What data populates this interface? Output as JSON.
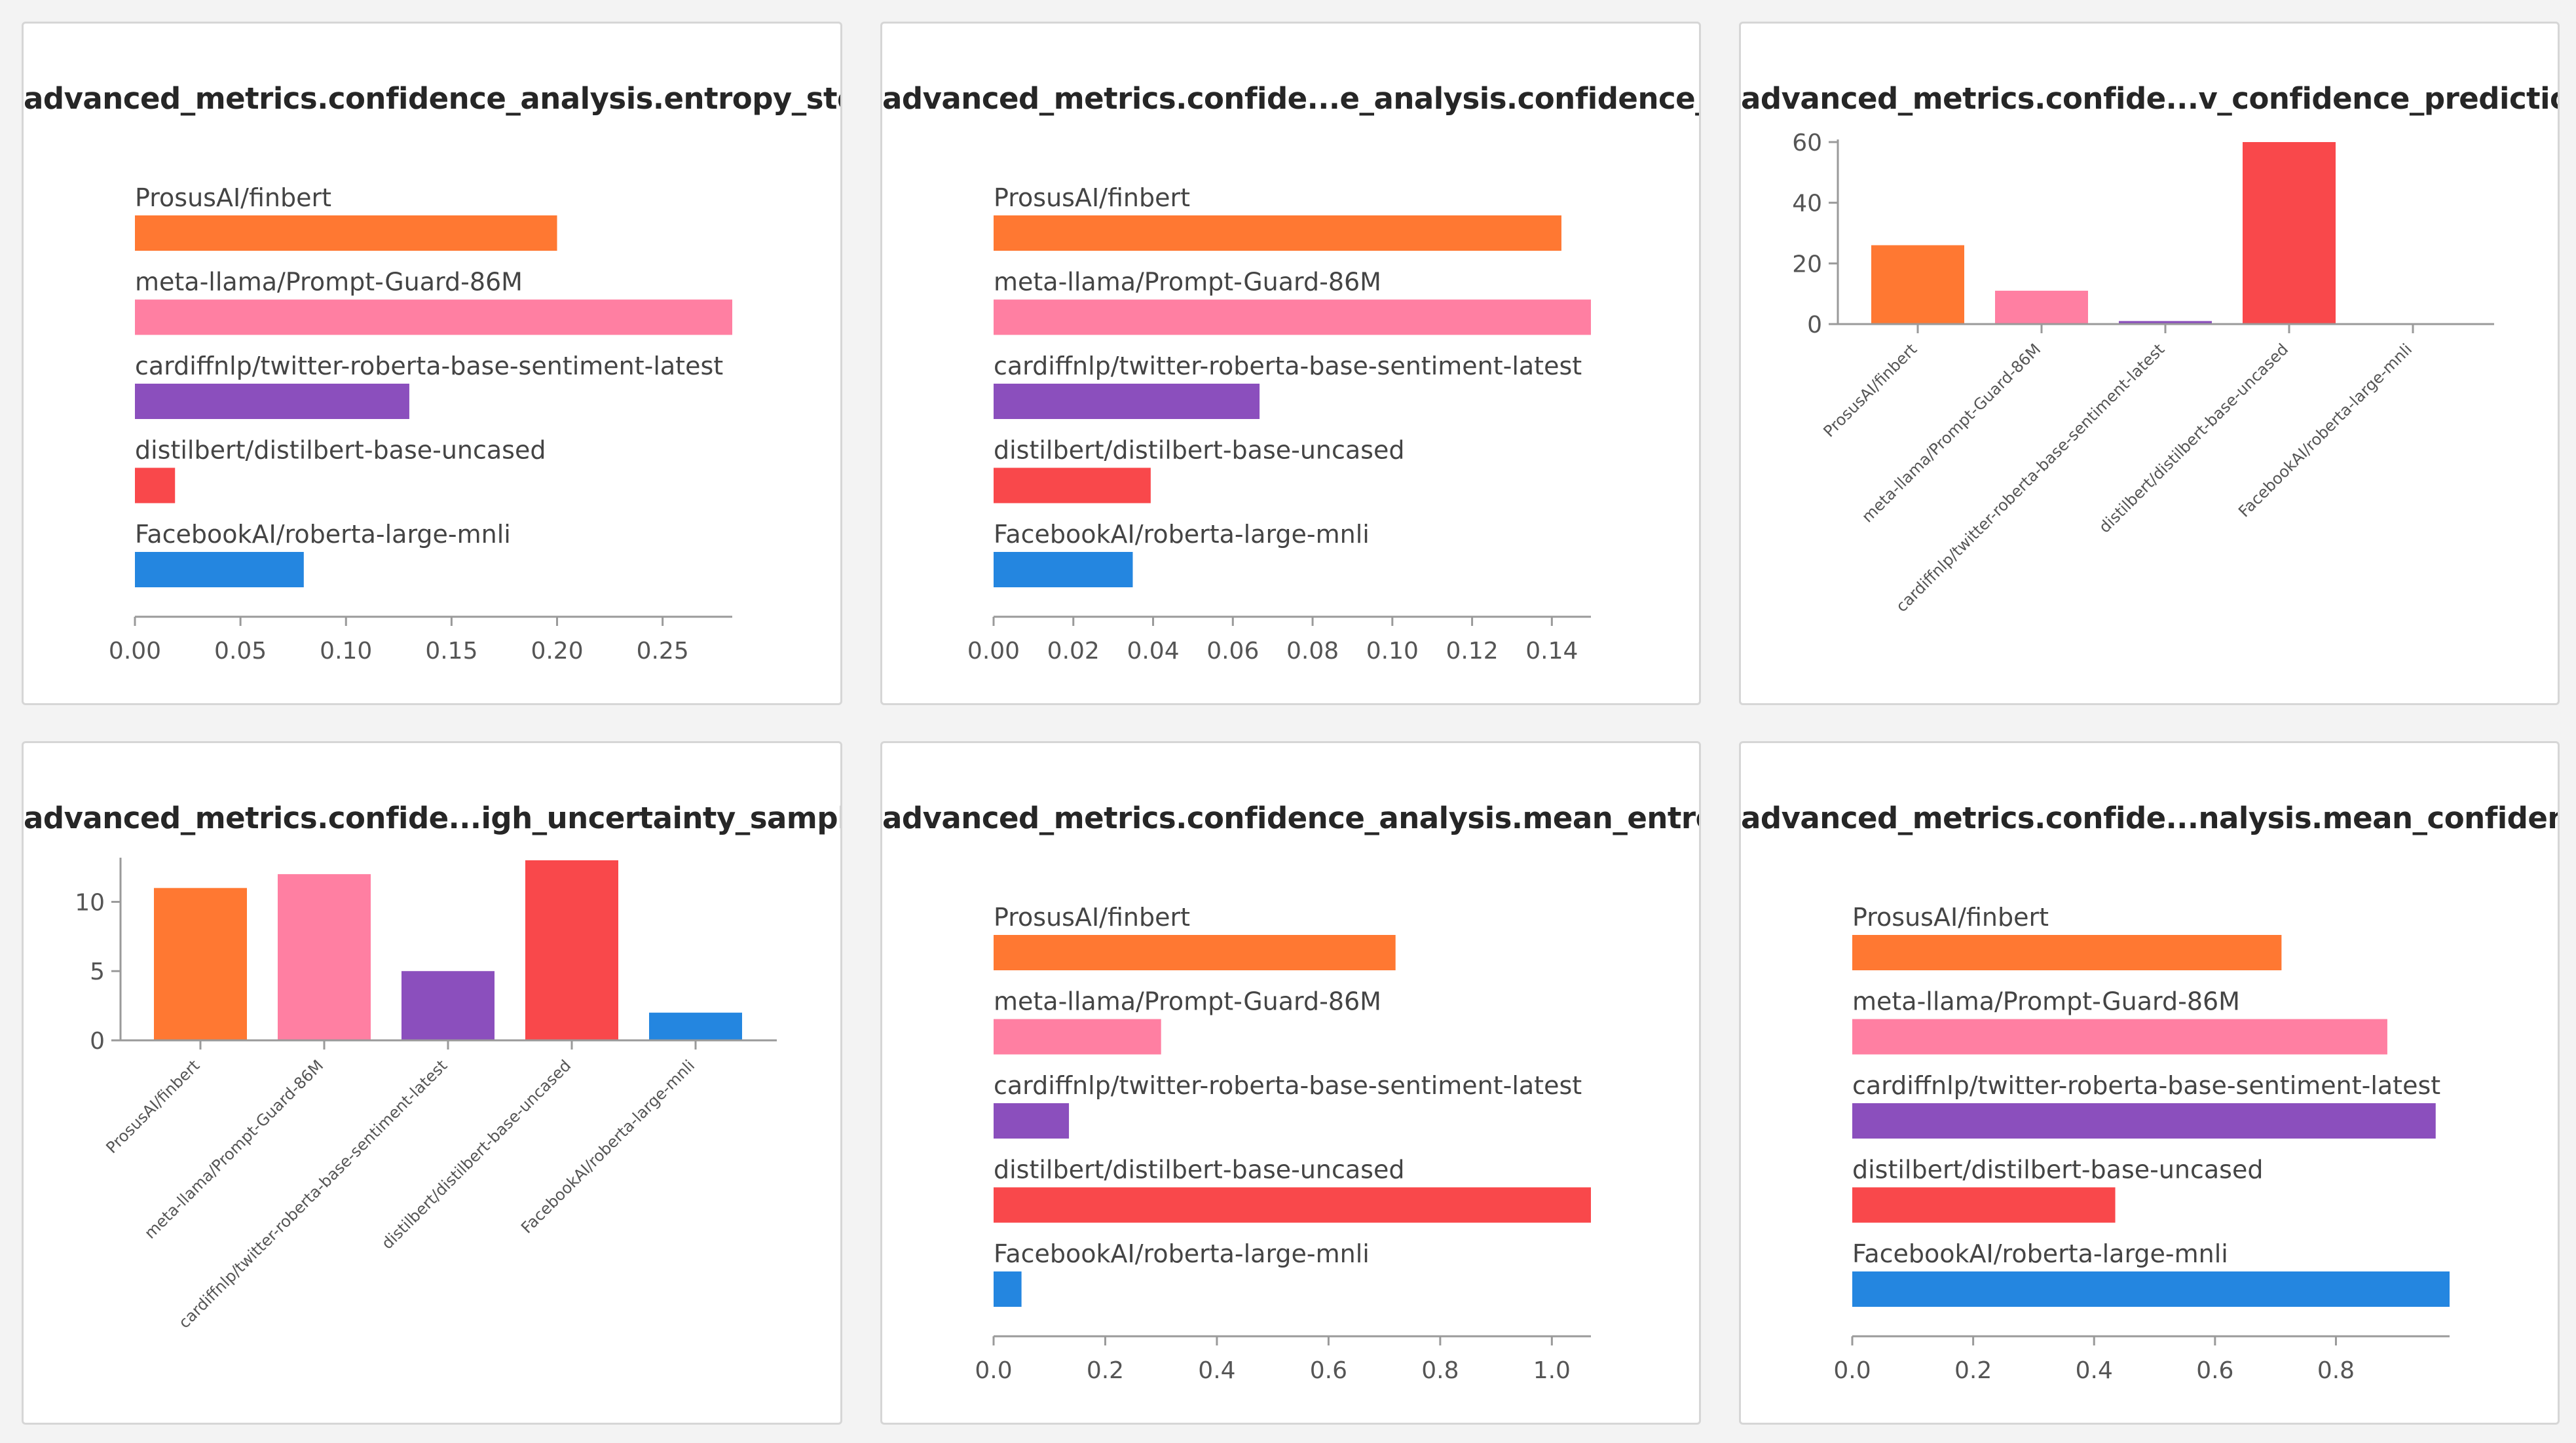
{
  "panels": [
    {
      "title": "advanced_metrics.confidence_analysis.entropy_std"
    },
    {
      "title": "advanced_metrics.confide...e_analysis.confidence_std"
    },
    {
      "title": "advanced_metrics.confide...v_confidence_predictions"
    },
    {
      "title": "advanced_metrics.confide...igh_uncertainty_samples"
    },
    {
      "title": "advanced_metrics.confidence_analysis.mean_entropy"
    },
    {
      "title": "advanced_metrics.confide...nalysis.mean_confidence"
    }
  ],
  "colors": {
    "ProsusAI/finbert": "#ff7832",
    "meta-llama/Prompt-Guard-86M": "#ff7fa2",
    "cardiffnlp/twitter-roberta-base-sentiment-latest": "#8b4fbd",
    "distilbert/distilbert-base-uncased": "#f9484b",
    "FacebookAI/roberta-large-mnli": "#2486e0"
  },
  "chart_data": [
    {
      "type": "bar",
      "orientation": "horizontal",
      "title": "advanced_metrics.confidence_analysis.entropy_std",
      "categories": [
        "ProsusAI/finbert",
        "meta-llama/Prompt-Guard-86M",
        "cardiffnlp/twitter-roberta-base-sentiment-latest",
        "distilbert/distilbert-base-uncased",
        "FacebookAI/roberta-large-mnli"
      ],
      "values": [
        0.2,
        0.283,
        0.13,
        0.019,
        0.08
      ],
      "xlim": [
        0,
        0.283
      ],
      "ticks": [
        0,
        0.05,
        0.1,
        0.15,
        0.2,
        0.25
      ],
      "tick_labels": [
        "0.00",
        "0.05",
        "0.10",
        "0.15",
        "0.20",
        "0.25"
      ]
    },
    {
      "type": "bar",
      "orientation": "horizontal",
      "title": "advanced_metrics.confide...e_analysis.confidence_std",
      "categories": [
        "ProsusAI/finbert",
        "meta-llama/Prompt-Guard-86M",
        "cardiffnlp/twitter-roberta-base-sentiment-latest",
        "distilbert/distilbert-base-uncased",
        "FacebookAI/roberta-large-mnli"
      ],
      "values": [
        0.1424,
        0.1498,
        0.0667,
        0.0394,
        0.0349
      ],
      "xlim": [
        0,
        0.1498
      ],
      "ticks": [
        0,
        0.02,
        0.04,
        0.06,
        0.08,
        0.1,
        0.12,
        0.14
      ],
      "tick_labels": [
        "0.00",
        "0.02",
        "0.04",
        "0.06",
        "0.08",
        "0.10",
        "0.12",
        "0.14"
      ]
    },
    {
      "type": "bar",
      "orientation": "vertical",
      "title": "advanced_metrics.confide...v_confidence_predictions",
      "categories": [
        "ProsusAI/finbert",
        "meta-llama/Prompt-Guard-86M",
        "cardiffnlp/twitter-roberta-base-sentiment-latest",
        "distilbert/distilbert-base-uncased",
        "FacebookAI/roberta-large-mnli"
      ],
      "values": [
        26,
        11,
        1,
        60,
        0
      ],
      "ylim": [
        0,
        60
      ],
      "ticks": [
        0,
        20,
        40,
        60
      ],
      "tick_labels": [
        "0",
        "20",
        "40",
        "60"
      ]
    },
    {
      "type": "bar",
      "orientation": "vertical",
      "title": "advanced_metrics.confide...igh_uncertainty_samples",
      "categories": [
        "ProsusAI/finbert",
        "meta-llama/Prompt-Guard-86M",
        "cardiffnlp/twitter-roberta-base-sentiment-latest",
        "distilbert/distilbert-base-uncased",
        "FacebookAI/roberta-large-mnli"
      ],
      "values": [
        11,
        12,
        5,
        13,
        2
      ],
      "ylim": [
        0,
        13
      ],
      "ticks": [
        0,
        5,
        10
      ],
      "tick_labels": [
        "0",
        "5",
        "10"
      ]
    },
    {
      "type": "bar",
      "orientation": "horizontal",
      "title": "advanced_metrics.confidence_analysis.mean_entropy",
      "categories": [
        "ProsusAI/finbert",
        "meta-llama/Prompt-Guard-86M",
        "cardiffnlp/twitter-roberta-base-sentiment-latest",
        "distilbert/distilbert-base-uncased",
        "FacebookAI/roberta-large-mnli"
      ],
      "values": [
        0.72,
        0.3,
        0.135,
        1.07,
        0.05
      ],
      "xlim": [
        0,
        1.07
      ],
      "ticks": [
        0,
        0.2,
        0.4,
        0.6,
        0.8,
        1.0
      ],
      "tick_labels": [
        "0.0",
        "0.2",
        "0.4",
        "0.6",
        "0.8",
        "1.0"
      ]
    },
    {
      "type": "bar",
      "orientation": "horizontal",
      "title": "advanced_metrics.confide...nalysis.mean_confidence",
      "categories": [
        "ProsusAI/finbert",
        "meta-llama/Prompt-Guard-86M",
        "cardiffnlp/twitter-roberta-base-sentiment-latest",
        "distilbert/distilbert-base-uncased",
        "FacebookAI/roberta-large-mnli"
      ],
      "values": [
        0.71,
        0.885,
        0.965,
        0.435,
        0.988
      ],
      "xlim": [
        0,
        0.988
      ],
      "ticks": [
        0,
        0.2,
        0.4,
        0.6,
        0.8
      ],
      "tick_labels": [
        "0.0",
        "0.2",
        "0.4",
        "0.6",
        "0.8"
      ]
    }
  ]
}
